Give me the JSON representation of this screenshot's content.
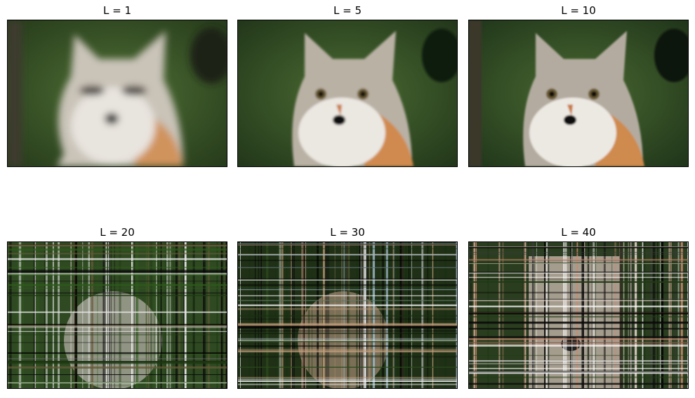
{
  "panels": [
    {
      "title": "L = 1",
      "variant": "blur"
    },
    {
      "title": "L = 5",
      "variant": "sharp"
    },
    {
      "title": "L = 10",
      "variant": "sharp"
    },
    {
      "title": "L = 20",
      "variant": "noise"
    },
    {
      "title": "L = 30",
      "variant": "noise"
    },
    {
      "title": "L = 40",
      "variant": "noise"
    }
  ]
}
